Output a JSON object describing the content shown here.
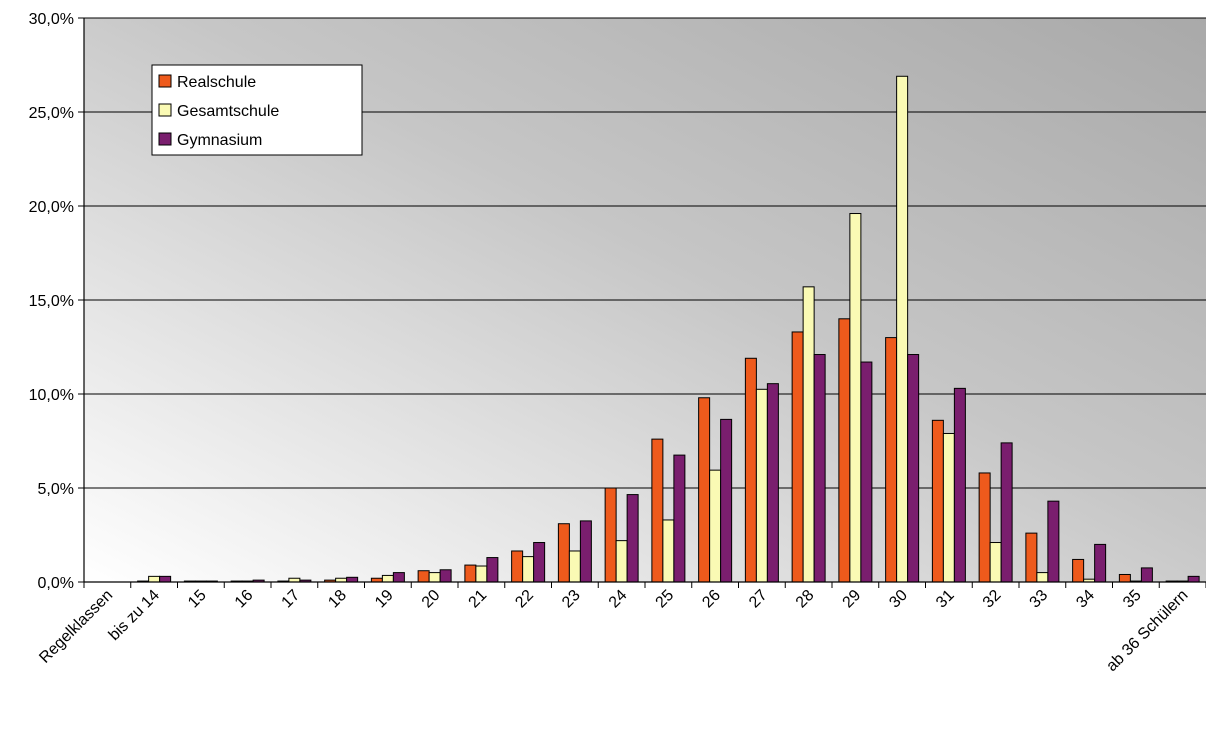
{
  "chart_data": {
    "type": "bar",
    "categories": [
      "Regelklassen",
      "bis zu 14",
      "15",
      "16",
      "17",
      "18",
      "19",
      "20",
      "21",
      "22",
      "23",
      "24",
      "25",
      "26",
      "27",
      "28",
      "29",
      "30",
      "31",
      "32",
      "33",
      "34",
      "35",
      "ab 36 Schülern"
    ],
    "series": [
      {
        "name": "Realschule",
        "color": "#ee5a1c",
        "values": [
          0,
          0.05,
          0.05,
          0.05,
          0.05,
          0.1,
          0.2,
          0.6,
          0.9,
          1.65,
          3.1,
          5.0,
          7.6,
          9.8,
          11.9,
          13.3,
          14.0,
          13.0,
          8.6,
          5.8,
          2.6,
          1.2,
          0.4,
          0.05
        ]
      },
      {
        "name": "Gesamtschule",
        "color": "#fafab4",
        "values": [
          0,
          0.3,
          0.05,
          0.05,
          0.2,
          0.2,
          0.35,
          0.5,
          0.85,
          1.35,
          1.65,
          2.2,
          3.3,
          5.95,
          10.25,
          15.7,
          19.6,
          26.9,
          7.9,
          2.1,
          0.5,
          0.15,
          0.05,
          0.05
        ]
      },
      {
        "name": "Gymnasium",
        "color": "#7a1e6e",
        "values": [
          0,
          0.3,
          0.05,
          0.1,
          0.1,
          0.25,
          0.5,
          0.65,
          1.3,
          2.1,
          3.25,
          4.65,
          6.75,
          8.65,
          10.55,
          12.1,
          11.7,
          12.1,
          10.3,
          7.4,
          4.3,
          2.0,
          0.75,
          0.3
        ]
      }
    ],
    "yticks": [
      "0,0%",
      "5,0%",
      "10,0%",
      "15,0%",
      "20,0%",
      "25,0%",
      "30,0%"
    ],
    "ylim": [
      0,
      30
    ],
    "grid": true,
    "legend_position": "top-left"
  }
}
